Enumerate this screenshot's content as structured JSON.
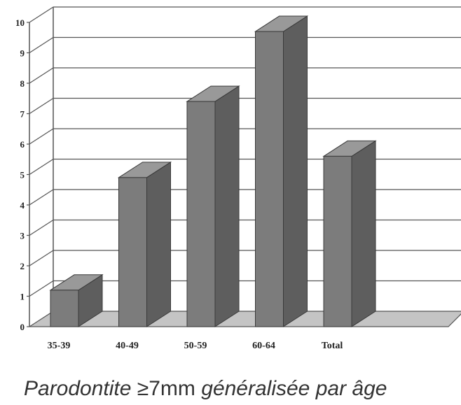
{
  "chart_data": {
    "type": "bar",
    "style": "3d",
    "categories": [
      "35-39",
      "40-49",
      "50-59",
      "60-64",
      "Total"
    ],
    "values": [
      1.2,
      4.9,
      7.4,
      9.7,
      5.6
    ],
    "title": "",
    "xlabel": "",
    "ylabel": "",
    "ylim": [
      0,
      10
    ],
    "yticks": [
      0,
      1,
      2,
      3,
      4,
      5,
      6,
      7,
      8,
      9,
      10
    ],
    "grid": true,
    "legend": "none",
    "colors": {
      "bar_front": "#7c7c7c",
      "bar_side": "#5e5e5e",
      "bar_top": "#999999",
      "floor": "#c4c4c4",
      "gridline": "#555555"
    }
  },
  "caption": {
    "part1": "Parodontite ≥",
    "part2": "7mm",
    "part3": " généralisée par âge"
  }
}
